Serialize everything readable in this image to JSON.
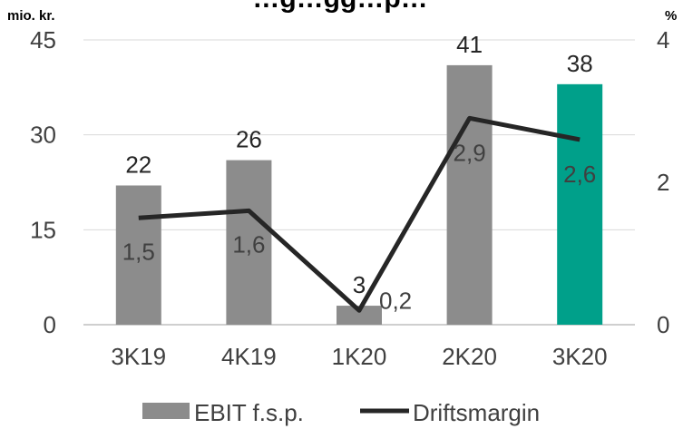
{
  "chart_data": {
    "type": "bar",
    "title": "…g…gg…p…",
    "y_unit_left": "mio. kr.",
    "y_unit_right": "%",
    "categories": [
      "3K19",
      "4K19",
      "1K20",
      "2K20",
      "3K20"
    ],
    "ylim": [
      0,
      45
    ],
    "yticks": [
      0,
      15,
      30,
      45
    ],
    "ylim_right": [
      0,
      4
    ],
    "yticks_right": [
      0,
      2,
      4
    ],
    "grid": true,
    "legend_position": "bottom",
    "series": [
      {
        "name": "EBIT f.s.p.",
        "type": "bar",
        "axis": "left",
        "values": [
          22,
          26,
          3,
          41,
          38
        ],
        "value_labels": [
          "22",
          "26",
          "3",
          "41",
          "38"
        ],
        "color": "#8c8c8c",
        "highlight_color": "#00a08a",
        "highlight_index": 4
      },
      {
        "name": "Driftsmargin",
        "type": "line",
        "axis": "right",
        "values": [
          1.5,
          1.6,
          0.2,
          2.9,
          2.6
        ],
        "value_labels": [
          "1,5",
          "1,6",
          "0,2",
          "2,9",
          "2,6"
        ],
        "color": "#262626"
      }
    ]
  }
}
